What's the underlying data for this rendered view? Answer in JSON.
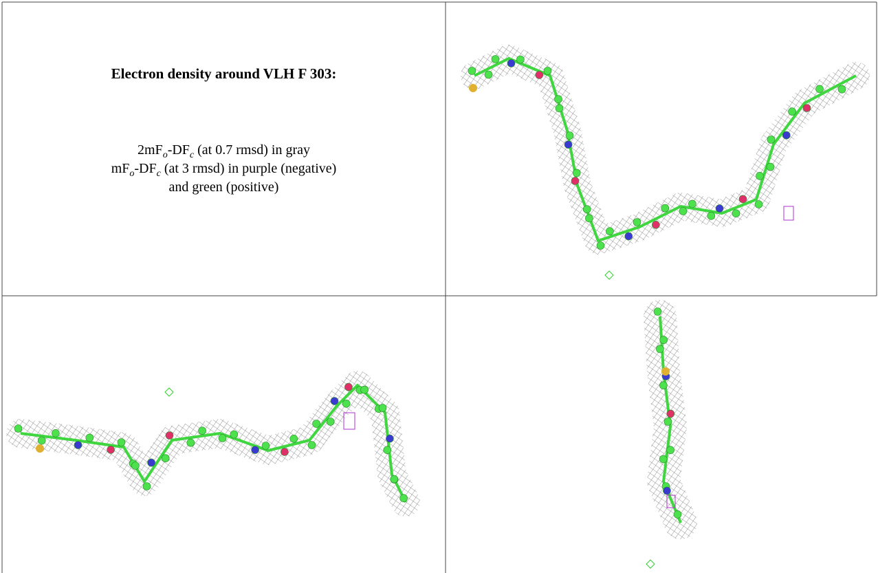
{
  "legend": {
    "title": "Electron density around VLH F 303:",
    "line1": [
      "2mF",
      "o",
      "-DF",
      "c",
      " (at 0.7 rmsd) in gray"
    ],
    "line2": [
      "mF",
      "o",
      "-DF",
      "c",
      " (at 3 rmsd) in purple (negative)"
    ],
    "line3": "and green (positive)"
  }
}
